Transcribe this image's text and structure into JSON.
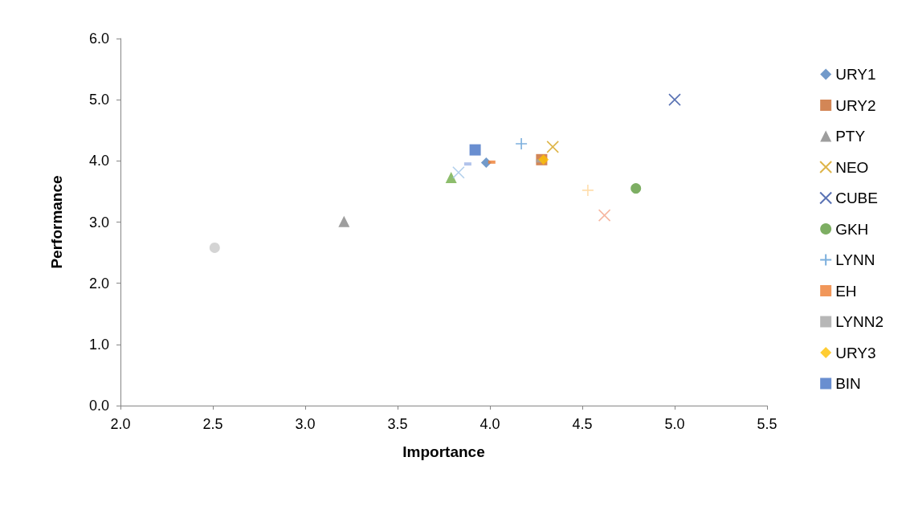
{
  "chart_data": {
    "type": "scatter",
    "xlabel": "Importance",
    "ylabel": "Performance",
    "xlim": [
      2.0,
      5.5
    ],
    "ylim": [
      0.0,
      6.0
    ],
    "xticks": [
      {
        "value": 2,
        "label": "2.0"
      },
      {
        "value": 2.5,
        "label": "2.5"
      },
      {
        "value": 3,
        "label": "3.0"
      },
      {
        "value": 3.5,
        "label": "3.5"
      },
      {
        "value": 4,
        "label": "4.0"
      },
      {
        "value": 4.5,
        "label": "4.5"
      },
      {
        "value": 5,
        "label": "5.0"
      },
      {
        "value": 5.5,
        "label": "5.5"
      }
    ],
    "yticks": [
      {
        "value": 0,
        "label": "0.0"
      },
      {
        "value": 1,
        "label": "1.0"
      },
      {
        "value": 2,
        "label": "2.0"
      },
      {
        "value": 3,
        "label": "3.0"
      },
      {
        "value": 4,
        "label": "4.0"
      },
      {
        "value": 5,
        "label": "5.0"
      },
      {
        "value": 6,
        "label": "6.0"
      }
    ],
    "grid": false,
    "legend": "right",
    "series": [
      {
        "name": "URY1",
        "color": "#4f81bd",
        "marker": "diamond",
        "x": [
          3.98
        ],
        "values": [
          3.97
        ]
      },
      {
        "name": "URY2",
        "color": "#c8682c",
        "marker": "square",
        "x": [
          4.28
        ],
        "values": [
          4.02
        ]
      },
      {
        "name": "PTY",
        "color": "#868686",
        "marker": "triangle",
        "x": [
          3.21
        ],
        "values": [
          3.01
        ]
      },
      {
        "name": "NEO",
        "color": "#d6a21c",
        "marker": "cross",
        "x": [
          4.34
        ],
        "values": [
          4.23
        ]
      },
      {
        "name": "CUBE",
        "color": "#2f4fa0",
        "marker": "cross",
        "x": [
          5.0
        ],
        "values": [
          5.0
        ]
      },
      {
        "name": "GKH",
        "color": "#5c9a3c",
        "marker": "circle",
        "x": [
          4.79
        ],
        "values": [
          3.55
        ]
      },
      {
        "name": "LYNN",
        "color": "#5b9bd5",
        "marker": "plus",
        "x": [
          4.17
        ],
        "values": [
          4.28
        ]
      },
      {
        "name": "EH",
        "color": "#ed7d31",
        "x": [
          4.01
        ],
        "values": [
          3.98
        ]
      },
      {
        "name": "LYNN2",
        "color": "#a5a5a5",
        "x": [
          4.27
        ],
        "values": [
          4.0
        ]
      },
      {
        "name": "URY3",
        "color": "#ffc000",
        "marker": "diamond",
        "x": [
          4.29
        ],
        "values": [
          4.02
        ]
      },
      {
        "name": "BIN",
        "color": "#4472c4",
        "marker": "square",
        "x": [
          3.92
        ],
        "values": [
          4.18
        ]
      },
      {
        "color": "#c9c9c9",
        "marker": "circle",
        "x": [
          2.51
        ],
        "values": [
          2.58
        ]
      },
      {
        "color": "#70ad47",
        "marker": "triangle",
        "x": [
          3.79
        ],
        "values": [
          3.73
        ]
      },
      {
        "color": "#9dc3e6",
        "marker": "cross",
        "x": [
          3.83
        ],
        "values": [
          3.81
        ]
      },
      {
        "color": "#9db4e6",
        "x": [
          3.88
        ],
        "values": [
          3.95
        ]
      },
      {
        "color": "#ffd699",
        "marker": "plus",
        "x": [
          4.53
        ],
        "values": [
          3.52
        ]
      },
      {
        "color": "#f4a58a",
        "marker": "cross",
        "x": [
          4.62
        ],
        "values": [
          3.11
        ]
      }
    ]
  }
}
